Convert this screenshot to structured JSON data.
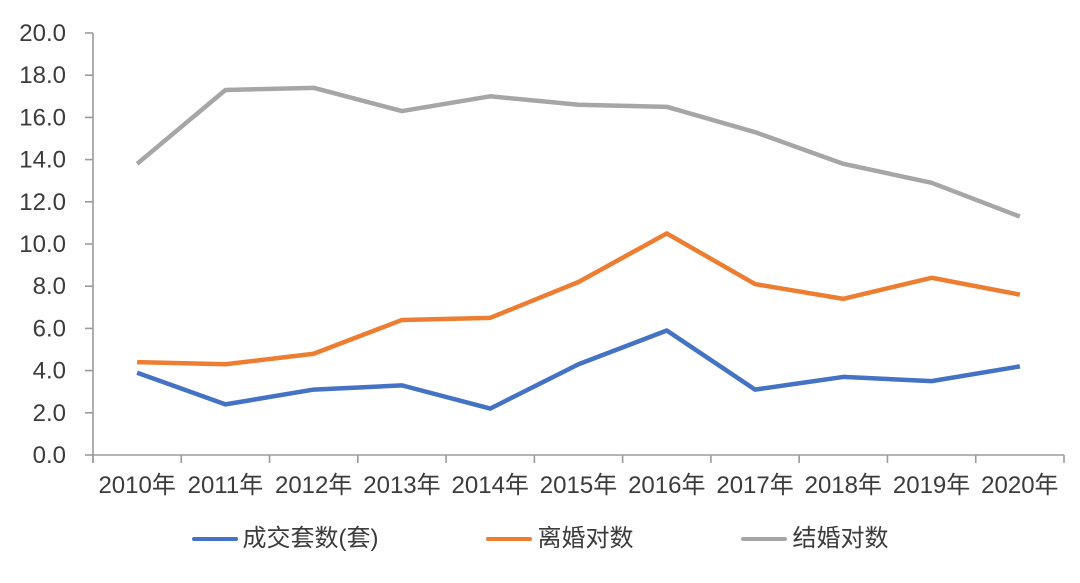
{
  "chart_data": {
    "type": "line",
    "title": "",
    "xlabel": "",
    "ylabel": "",
    "categories": [
      "2010年",
      "2011年",
      "2012年",
      "2013年",
      "2014年",
      "2015年",
      "2016年",
      "2017年",
      "2018年",
      "2019年",
      "2020年"
    ],
    "series": [
      {
        "name": "成交套数(套)",
        "color": "#4472C4",
        "values": [
          3.9,
          2.4,
          3.1,
          3.3,
          2.2,
          4.3,
          5.9,
          3.1,
          3.7,
          3.5,
          4.2
        ]
      },
      {
        "name": "离婚对数",
        "color": "#ED7D31",
        "values": [
          4.4,
          4.3,
          4.8,
          6.4,
          6.5,
          8.2,
          10.5,
          8.1,
          7.4,
          8.4,
          7.6
        ]
      },
      {
        "name": "结婚对数",
        "color": "#A6A6A6",
        "values": [
          13.8,
          17.3,
          17.4,
          16.3,
          17.0,
          16.6,
          16.5,
          15.3,
          13.8,
          12.9,
          11.3
        ]
      }
    ],
    "ylim": [
      0,
      20
    ],
    "ytick_step": 2,
    "ytick_labels": [
      "0.0",
      "2.0",
      "4.0",
      "6.0",
      "8.0",
      "10.0",
      "12.0",
      "14.0",
      "16.0",
      "18.0",
      "20.0"
    ],
    "grid": false,
    "legend_position": "bottom",
    "axis_color": "#9b9b9b",
    "tick_label_color": "#3b3b3b"
  }
}
